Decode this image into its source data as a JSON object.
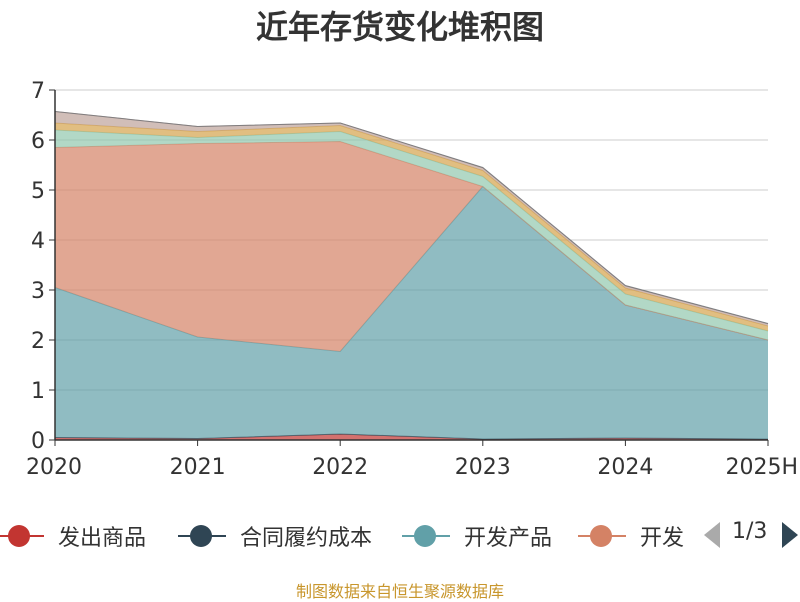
{
  "chart_data": {
    "type": "area",
    "stacked": true,
    "title": "近年存货变化堆积图",
    "ylabel": "",
    "categories": [
      "2020",
      "2021",
      "2022",
      "2023",
      "2024",
      "2025H"
    ],
    "ylim": [
      0,
      7
    ],
    "yticks": [
      0,
      1,
      2,
      3,
      4,
      5,
      6,
      7
    ],
    "grid": true,
    "legend_position": "bottom",
    "series": [
      {
        "name": "发出商品",
        "color": "#c23531",
        "values": [
          0.05,
          0.03,
          0.12,
          0.02,
          0.04,
          0.02
        ]
      },
      {
        "name": "合同履约成本",
        "color": "#2f4554",
        "values": [
          0.0,
          0.0,
          0.0,
          0.0,
          0.0,
          0.0
        ]
      },
      {
        "name": "开发产品",
        "color": "#61a0a8",
        "values": [
          3.0,
          2.03,
          1.65,
          5.05,
          2.66,
          1.98
        ]
      },
      {
        "name": "开发成本",
        "color": "#d48265",
        "values": [
          2.8,
          3.87,
          4.2,
          0.0,
          0.0,
          0.0
        ]
      },
      {
        "name": "",
        "color": "#91c7ae",
        "values": [
          0.35,
          0.12,
          0.2,
          0.2,
          0.22,
          0.18
        ]
      },
      {
        "name": "",
        "color": "#d4a24c",
        "values": [
          0.14,
          0.12,
          0.12,
          0.12,
          0.12,
          0.1
        ]
      },
      {
        "name": "",
        "color": "#bda29a",
        "values": [
          0.23,
          0.1,
          0.05,
          0.05,
          0.04,
          0.04
        ]
      },
      {
        "name": "",
        "color": "#6e7074",
        "values": [
          0.0,
          0.0,
          0.0,
          0.01,
          0.01,
          0.01
        ]
      }
    ]
  },
  "legend": {
    "page": "1/3",
    "visible_items": [
      {
        "label": "发出商品",
        "color": "#c23531"
      },
      {
        "label": "合同履约成本",
        "color": "#2f4554"
      },
      {
        "label": "开发产品",
        "color": "#61a0a8"
      },
      {
        "label": "开发",
        "color": "#d48265"
      }
    ]
  },
  "source": "制图数据来自恒生聚源数据库"
}
